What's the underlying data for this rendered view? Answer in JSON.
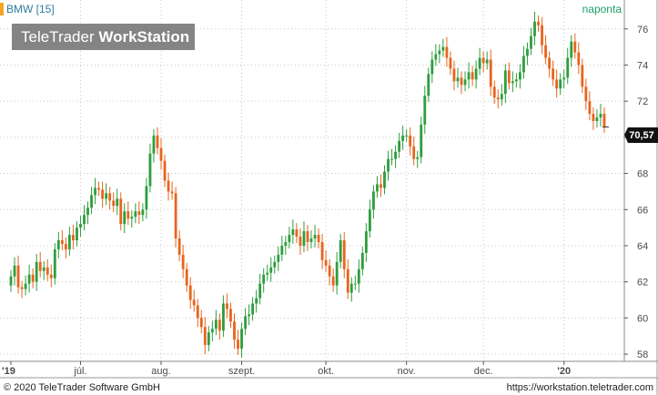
{
  "header": {
    "instrument": "BMW [15]",
    "period": "naponta"
  },
  "watermark": {
    "brand": "TeleTrader ",
    "product": "WorkStation"
  },
  "footer": {
    "copyright": "© 2020 TeleTrader Software GmbH",
    "url": "https://workstation.teletrader.com"
  },
  "last_price": "70,57",
  "colors": {
    "up": "#2e9e3f",
    "down": "#e8641e",
    "grid": "#c8c8c8",
    "accent": "#f5a623",
    "axis": "#555555"
  },
  "chart_data": {
    "type": "candlestick",
    "title": "BMW [15]",
    "period": "naponta",
    "ylim": [
      57.6,
      77.6
    ],
    "yticks": [
      58,
      60,
      62,
      64,
      66,
      68,
      70,
      72,
      74,
      76
    ],
    "ytick_labels": [
      "58",
      "60",
      "62",
      "64",
      "66",
      "68",
      "70",
      "72",
      "74",
      "76"
    ],
    "x_labels": [
      "'19",
      "júl.",
      "aug.",
      "szept.",
      "okt.",
      "nov.",
      "dec.",
      "'20"
    ],
    "grid": true,
    "last_value": 70.57,
    "series_close": [
      62.3,
      62.9,
      61.7,
      61.6,
      61.9,
      62.4,
      62.0,
      63.1,
      62.6,
      62.8,
      62.4,
      62.2,
      63.8,
      64.3,
      64.1,
      63.8,
      64.6,
      64.3,
      65.0,
      65.2,
      65.7,
      66.1,
      66.8,
      67.2,
      67.1,
      66.6,
      66.9,
      66.5,
      66.2,
      66.6,
      65.2,
      65.9,
      65.5,
      65.6,
      65.9,
      65.7,
      66.0,
      67.3,
      69.1,
      70.1,
      69.4,
      68.7,
      67.6,
      67.0,
      66.9,
      64.4,
      63.5,
      62.7,
      61.8,
      61.0,
      60.7,
      60.0,
      59.5,
      58.5,
      59.2,
      59.4,
      59.9,
      59.3,
      60.8,
      60.5,
      59.8,
      58.8,
      58.3,
      59.4,
      60.1,
      60.2,
      60.8,
      61.1,
      61.9,
      62.4,
      62.5,
      62.8,
      63.1,
      63.5,
      64.0,
      64.2,
      64.6,
      64.9,
      64.5,
      64.0,
      64.8,
      64.2,
      64.4,
      64.6,
      64.2,
      63.2,
      62.9,
      62.3,
      61.8,
      63.1,
      64.3,
      62.7,
      61.4,
      61.9,
      61.9,
      62.7,
      63.6,
      64.8,
      66.0,
      67.0,
      67.4,
      67.2,
      68.1,
      68.8,
      68.8,
      69.2,
      69.8,
      70.1,
      70.1,
      69.5,
      68.8,
      68.9,
      70.7,
      72.3,
      73.5,
      74.3,
      74.6,
      74.8,
      75.0,
      74.4,
      73.8,
      73.1,
      73.3,
      72.9,
      73.2,
      73.6,
      73.2,
      73.8,
      74.4,
      74.1,
      74.3,
      72.8,
      72.2,
      72.1,
      72.4,
      73.7,
      73.0,
      73.1,
      73.2,
      73.6,
      74.5,
      74.9,
      75.6,
      76.4,
      76.2,
      75.1,
      74.4,
      73.8,
      73.2,
      72.7,
      73.2,
      73.3,
      74.4,
      75.3,
      74.7,
      74.0,
      72.8,
      72.0,
      71.3,
      70.9,
      71.1,
      71.3,
      70.6
    ]
  }
}
